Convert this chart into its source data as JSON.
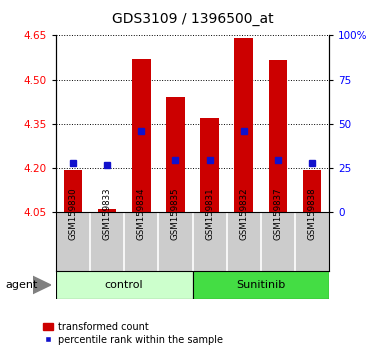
{
  "title": "GDS3109 / 1396500_at",
  "samples": [
    "GSM159830",
    "GSM159833",
    "GSM159834",
    "GSM159835",
    "GSM159831",
    "GSM159832",
    "GSM159837",
    "GSM159838"
  ],
  "bar_bottoms": [
    4.05,
    4.05,
    4.05,
    4.05,
    4.05,
    4.05,
    4.05,
    4.05
  ],
  "bar_tops": [
    4.195,
    4.062,
    4.57,
    4.44,
    4.37,
    4.64,
    4.565,
    4.195
  ],
  "percentile_values": [
    4.218,
    4.212,
    4.326,
    4.226,
    4.226,
    4.326,
    4.226,
    4.218
  ],
  "ylim": [
    4.05,
    4.65
  ],
  "yticks_left": [
    4.05,
    4.2,
    4.35,
    4.5,
    4.65
  ],
  "yticks_right": [
    0,
    25,
    50,
    75,
    100
  ],
  "bar_color": "#cc0000",
  "percentile_color": "#1111cc",
  "control_bg": "#ccffcc",
  "sunitinib_bg": "#44dd44",
  "label_bg": "#cccccc",
  "legend_red_label": "transformed count",
  "legend_blue_label": "percentile rank within the sample",
  "bar_width": 0.55
}
